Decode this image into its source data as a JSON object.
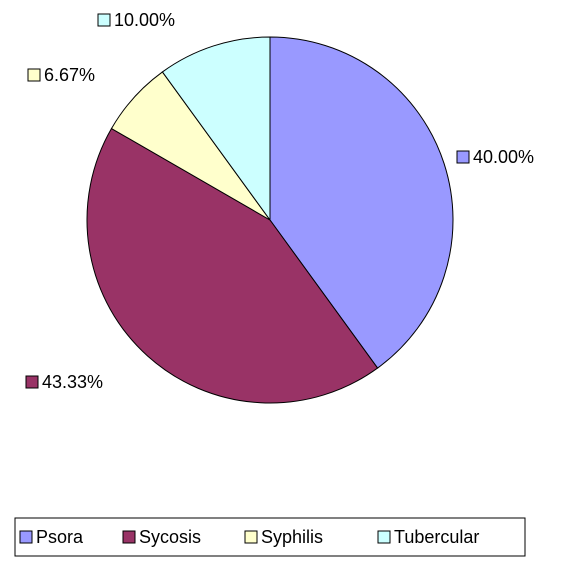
{
  "chart_data": {
    "type": "pie",
    "categories": [
      "Psora",
      "Sycosis",
      "Syphilis",
      "Tubercular"
    ],
    "values": [
      40,
      43.33,
      6.67,
      10
    ],
    "value_labels": [
      "40.00%",
      "43.33%",
      "6.67%",
      "10.00%"
    ],
    "colors": [
      "#9999ff",
      "#993366",
      "#ffffcc",
      "#ccffff"
    ],
    "legend": "bottom"
  }
}
